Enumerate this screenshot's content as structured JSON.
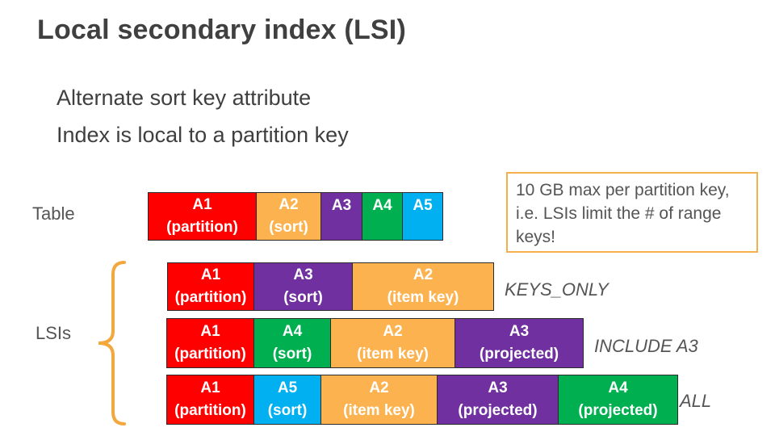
{
  "title": "Local secondary index (LSI)",
  "bullets": [
    "Alternate sort key attribute",
    "Index is local to a partition key"
  ],
  "labels": {
    "table": "Table",
    "lsis": "LSIs"
  },
  "note": "10 GB max per partition key, i.e. LSIs limit the # of range keys!",
  "colors": {
    "red": "#ff0000",
    "orange": "#fcb24f",
    "purple": "#7030a0",
    "green": "#00b050",
    "blue": "#00b0f0",
    "note_border": "#f5b04b"
  },
  "table_row": {
    "cells": [
      {
        "name": "A1",
        "role": "(partition)"
      },
      {
        "name": "A2",
        "role": "(sort)"
      },
      {
        "name": "A3",
        "role": ""
      },
      {
        "name": "A4",
        "role": ""
      },
      {
        "name": "A5",
        "role": ""
      }
    ]
  },
  "lsi_rows": [
    {
      "projection": "KEYS_ONLY",
      "cells": [
        {
          "name": "A1",
          "role": "(partition)"
        },
        {
          "name": "A3",
          "role": "(sort)"
        },
        {
          "name": "A2",
          "role": "(item key)"
        }
      ]
    },
    {
      "projection": "INCLUDE A3",
      "cells": [
        {
          "name": "A1",
          "role": "(partition)"
        },
        {
          "name": "A4",
          "role": "(sort)"
        },
        {
          "name": "A2",
          "role": "(item key)"
        },
        {
          "name": "A3",
          "role": "(projected)"
        }
      ]
    },
    {
      "projection": "ALL",
      "cells": [
        {
          "name": "A1",
          "role": "(partition)"
        },
        {
          "name": "A5",
          "role": "(sort)"
        },
        {
          "name": "A2",
          "role": "(item key)"
        },
        {
          "name": "A3",
          "role": "(projected)"
        },
        {
          "name": "A4",
          "role": "(projected)"
        }
      ]
    }
  ]
}
